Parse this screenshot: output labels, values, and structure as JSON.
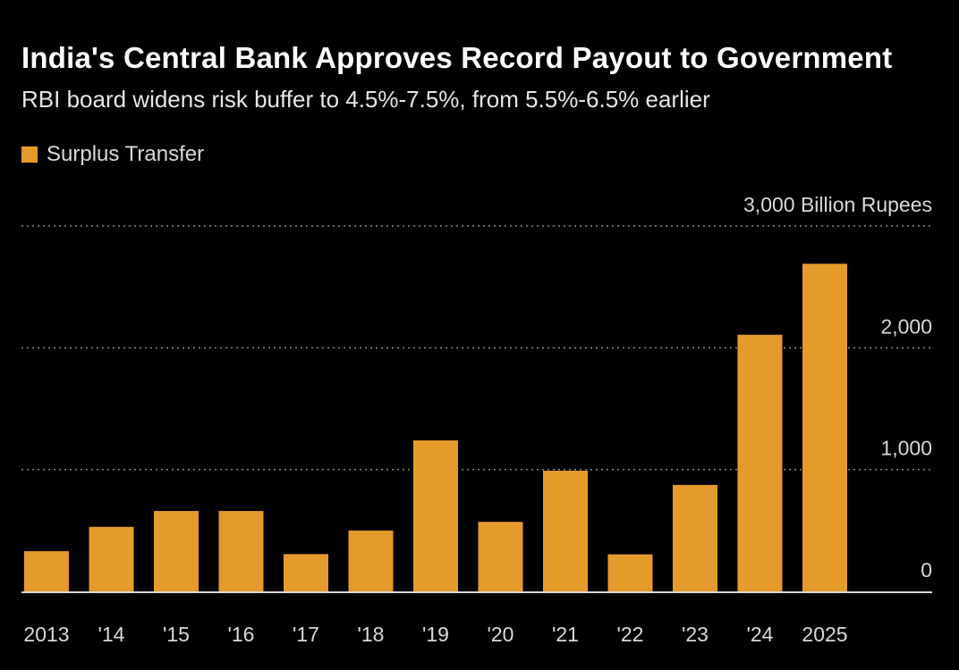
{
  "chart_data": {
    "type": "bar",
    "title": "India's Central Bank Approves Record Payout to Government",
    "subtitle": "RBI board widens risk buffer to 4.5%-7.5%, from 5.5%-6.5% earlier",
    "categories": [
      "2013",
      "'14",
      "'15",
      "'16",
      "'17",
      "'18",
      "'19",
      "'20",
      "'21",
      "'22",
      "'23",
      "'24",
      "2025"
    ],
    "series": [
      {
        "name": "Surplus Transfer",
        "values": [
          330,
          530,
          660,
          660,
          306,
          500,
          1240,
          571,
          991,
          304,
          874,
          2107,
          2690
        ]
      }
    ],
    "ylabel": "Billion Rupees",
    "ylim": [
      0,
      3000
    ],
    "yticks": [
      {
        "value": 0,
        "label": "0"
      },
      {
        "value": 1000,
        "label": "1,000"
      },
      {
        "value": 2000,
        "label": "2,000"
      },
      {
        "value": 3000,
        "label": "3,000 Billion Rupees"
      }
    ],
    "grid": true,
    "legend_position": "top-left",
    "bar_color": "#e59b2c",
    "background": "#000000",
    "grid_color": "#8a8a8a"
  }
}
